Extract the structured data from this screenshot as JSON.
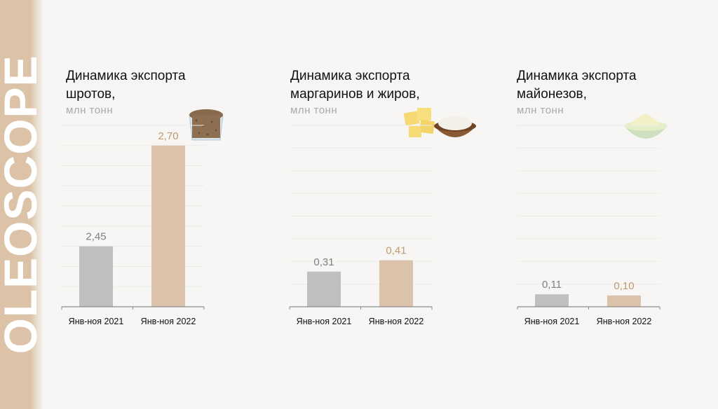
{
  "brand": "OLEOSCOPE",
  "colors": {
    "bar_2021": "#bfbfbf",
    "bar_2022": "#dbc3ab",
    "label_2021": "#7f7f7f",
    "label_2022": "#c0996c",
    "grid": "#ecebe8",
    "axis": "#8c8c8c"
  },
  "chart_data": [
    {
      "type": "bar",
      "title": "Динамика экспорта\nшротов,",
      "unit": "млн тонн",
      "icon": "meal-bowl-icon",
      "categories": [
        "Янв-ноя  2021",
        "Янв-ноя  2022"
      ],
      "values": [
        2.45,
        2.7
      ],
      "labels": [
        "2,45",
        "2,70"
      ],
      "ylim": [
        2.3,
        2.75
      ],
      "gridlines": 9
    },
    {
      "type": "bar",
      "title": "Динамика экспорта\nмаргаринов и жиров,",
      "unit": "млн тонн",
      "icon": "butter-icon",
      "categories": [
        "Янв-ноя  2021",
        "Янв-ноя  2022"
      ],
      "values": [
        0.31,
        0.41
      ],
      "labels": [
        "0,31",
        "0,41"
      ],
      "ylim": [
        0,
        1.6
      ],
      "gridlines": 8
    },
    {
      "type": "bar",
      "title": "Динамика экспорта\nмайонезов,",
      "unit": "млн тонн",
      "icon": "mayonnaise-bowl-icon",
      "categories": [
        "Янв-ноя  2021",
        "Янв-ноя  2022"
      ],
      "values": [
        0.11,
        0.1
      ],
      "labels": [
        "0,11",
        "0,10"
      ],
      "ylim": [
        0,
        1.6
      ],
      "gridlines": 8
    }
  ]
}
